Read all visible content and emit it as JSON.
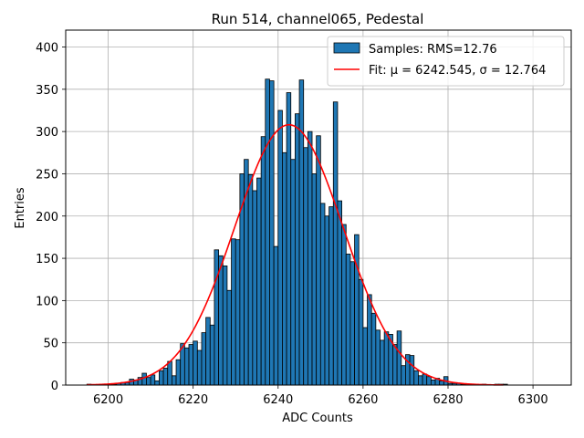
{
  "chart_data": {
    "type": "histogram",
    "title": "Run 514, channel065, Pedestal",
    "xlabel": "ADC Counts",
    "ylabel": "Entries",
    "xlim": [
      6190,
      6309
    ],
    "ylim": [
      0,
      420
    ],
    "xticks": [
      6200,
      6220,
      6240,
      6260,
      6280,
      6300
    ],
    "yticks": [
      0,
      50,
      100,
      150,
      200,
      250,
      300,
      350,
      400
    ],
    "grid": true,
    "legend_position": "top-right",
    "bar_color": "#1f77b4",
    "fit_color": "#ff0000",
    "legend": {
      "hist_label": "Samples: RMS=12.76",
      "fit_label": "Fit: μ = 6242.545, σ = 12.764"
    },
    "fit": {
      "mu": 6242.545,
      "sigma": 12.764,
      "peak": 308,
      "x_range": [
        6195,
        6293
      ]
    },
    "bins": [
      {
        "x": 6195,
        "v": 1
      },
      {
        "x": 6196,
        "v": 0
      },
      {
        "x": 6197,
        "v": 0
      },
      {
        "x": 6198,
        "v": 0
      },
      {
        "x": 6199,
        "v": 1
      },
      {
        "x": 6200,
        "v": 1
      },
      {
        "x": 6201,
        "v": 1
      },
      {
        "x": 6202,
        "v": 2
      },
      {
        "x": 6203,
        "v": 3
      },
      {
        "x": 6204,
        "v": 3
      },
      {
        "x": 6205,
        "v": 7
      },
      {
        "x": 6206,
        "v": 6
      },
      {
        "x": 6207,
        "v": 9
      },
      {
        "x": 6208,
        "v": 14
      },
      {
        "x": 6209,
        "v": 9
      },
      {
        "x": 6210,
        "v": 12
      },
      {
        "x": 6211,
        "v": 5
      },
      {
        "x": 6212,
        "v": 17
      },
      {
        "x": 6213,
        "v": 20
      },
      {
        "x": 6214,
        "v": 28
      },
      {
        "x": 6215,
        "v": 11
      },
      {
        "x": 6216,
        "v": 30
      },
      {
        "x": 6217,
        "v": 49
      },
      {
        "x": 6218,
        "v": 44
      },
      {
        "x": 6219,
        "v": 48
      },
      {
        "x": 6220,
        "v": 52
      },
      {
        "x": 6221,
        "v": 41
      },
      {
        "x": 6222,
        "v": 62
      },
      {
        "x": 6223,
        "v": 80
      },
      {
        "x": 6224,
        "v": 71
      },
      {
        "x": 6225,
        "v": 160
      },
      {
        "x": 6226,
        "v": 153
      },
      {
        "x": 6227,
        "v": 141
      },
      {
        "x": 6228,
        "v": 112
      },
      {
        "x": 6229,
        "v": 173
      },
      {
        "x": 6230,
        "v": 172
      },
      {
        "x": 6231,
        "v": 250
      },
      {
        "x": 6232,
        "v": 267
      },
      {
        "x": 6233,
        "v": 249
      },
      {
        "x": 6234,
        "v": 230
      },
      {
        "x": 6235,
        "v": 245
      },
      {
        "x": 6236,
        "v": 294
      },
      {
        "x": 6237,
        "v": 362
      },
      {
        "x": 6238,
        "v": 360
      },
      {
        "x": 6239,
        "v": 164
      },
      {
        "x": 6240,
        "v": 325
      },
      {
        "x": 6241,
        "v": 275
      },
      {
        "x": 6242,
        "v": 346
      },
      {
        "x": 6243,
        "v": 267
      },
      {
        "x": 6244,
        "v": 321
      },
      {
        "x": 6245,
        "v": 361
      },
      {
        "x": 6246,
        "v": 281
      },
      {
        "x": 6247,
        "v": 300
      },
      {
        "x": 6248,
        "v": 250
      },
      {
        "x": 6249,
        "v": 295
      },
      {
        "x": 6250,
        "v": 215
      },
      {
        "x": 6251,
        "v": 200
      },
      {
        "x": 6252,
        "v": 211
      },
      {
        "x": 6253,
        "v": 335
      },
      {
        "x": 6254,
        "v": 218
      },
      {
        "x": 6255,
        "v": 190
      },
      {
        "x": 6256,
        "v": 155
      },
      {
        "x": 6257,
        "v": 146
      },
      {
        "x": 6258,
        "v": 178
      },
      {
        "x": 6259,
        "v": 125
      },
      {
        "x": 6260,
        "v": 68
      },
      {
        "x": 6261,
        "v": 107
      },
      {
        "x": 6262,
        "v": 85
      },
      {
        "x": 6263,
        "v": 65
      },
      {
        "x": 6264,
        "v": 53
      },
      {
        "x": 6265,
        "v": 63
      },
      {
        "x": 6266,
        "v": 60
      },
      {
        "x": 6267,
        "v": 48
      },
      {
        "x": 6268,
        "v": 64
      },
      {
        "x": 6269,
        "v": 23
      },
      {
        "x": 6270,
        "v": 36
      },
      {
        "x": 6271,
        "v": 35
      },
      {
        "x": 6272,
        "v": 17
      },
      {
        "x": 6273,
        "v": 11
      },
      {
        "x": 6274,
        "v": 13
      },
      {
        "x": 6275,
        "v": 10
      },
      {
        "x": 6276,
        "v": 6
      },
      {
        "x": 6277,
        "v": 8
      },
      {
        "x": 6278,
        "v": 5
      },
      {
        "x": 6279,
        "v": 10
      },
      {
        "x": 6280,
        "v": 2
      },
      {
        "x": 6281,
        "v": 2
      },
      {
        "x": 6282,
        "v": 2
      },
      {
        "x": 6283,
        "v": 1
      },
      {
        "x": 6284,
        "v": 1
      },
      {
        "x": 6285,
        "v": 0
      },
      {
        "x": 6286,
        "v": 1
      },
      {
        "x": 6287,
        "v": 0
      },
      {
        "x": 6288,
        "v": 1
      },
      {
        "x": 6289,
        "v": 0
      },
      {
        "x": 6290,
        "v": 0
      },
      {
        "x": 6291,
        "v": 1
      },
      {
        "x": 6292,
        "v": 1
      },
      {
        "x": 6293,
        "v": 1
      }
    ]
  }
}
